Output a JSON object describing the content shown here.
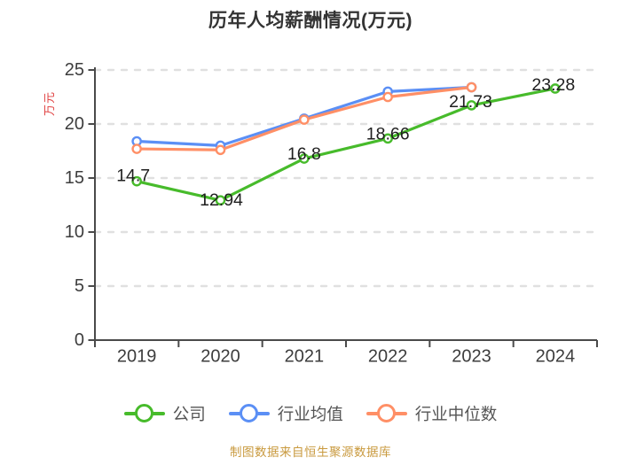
{
  "title": "历年人均薪酬情况(万元)",
  "y_axis_label": "万元",
  "footer": "制图数据来自恒生聚源数据库",
  "colors": {
    "company_green": "#47BB2B",
    "industry_avg_blue": "#5B8FF5",
    "industry_median_orange": "#FF8F66",
    "grid": "#E0E0E0",
    "axis": "#4A4A4A",
    "tick_label": "#3D3D3D",
    "point_label": "#1F1F1F",
    "title_text": "#333333",
    "y_axis_label_red": "#E04040",
    "footer_text": "#C99A3F",
    "legend_text": "#555555",
    "background": "#FFFFFF"
  },
  "legend": {
    "items": [
      {
        "label": "公司",
        "color": "#47BB2B"
      },
      {
        "label": "行业均值",
        "color": "#5B8FF5"
      },
      {
        "label": "行业中位数",
        "color": "#FF8F66"
      }
    ]
  },
  "chart_data": {
    "type": "line",
    "title": "历年人均薪酬情况(万元)",
    "categories": [
      "2019",
      "2020",
      "2021",
      "2022",
      "2023",
      "2024"
    ],
    "series": [
      {
        "name": "公司",
        "color": "#47BB2B",
        "values": [
          14.7,
          12.94,
          16.8,
          18.66,
          21.73,
          23.28
        ],
        "point_labels": [
          "14.7",
          "12.94",
          "16.8",
          "18.66",
          "21.73",
          "23.28"
        ]
      },
      {
        "name": "行业均值",
        "color": "#5B8FF5",
        "values": [
          18.4,
          18.0,
          20.5,
          23.0,
          23.4,
          null
        ],
        "point_labels": null
      },
      {
        "name": "行业中位数",
        "color": "#FF8F66",
        "values": [
          17.7,
          17.6,
          20.4,
          22.5,
          23.4,
          null
        ],
        "point_labels": null
      }
    ],
    "xlabel": "",
    "ylabel": "万元",
    "ylim": [
      0,
      25
    ],
    "yticks": [
      0,
      5,
      10,
      15,
      20,
      25
    ],
    "grid": "horizontal-dashed",
    "legend_position": "bottom",
    "marker": "open-circle"
  }
}
